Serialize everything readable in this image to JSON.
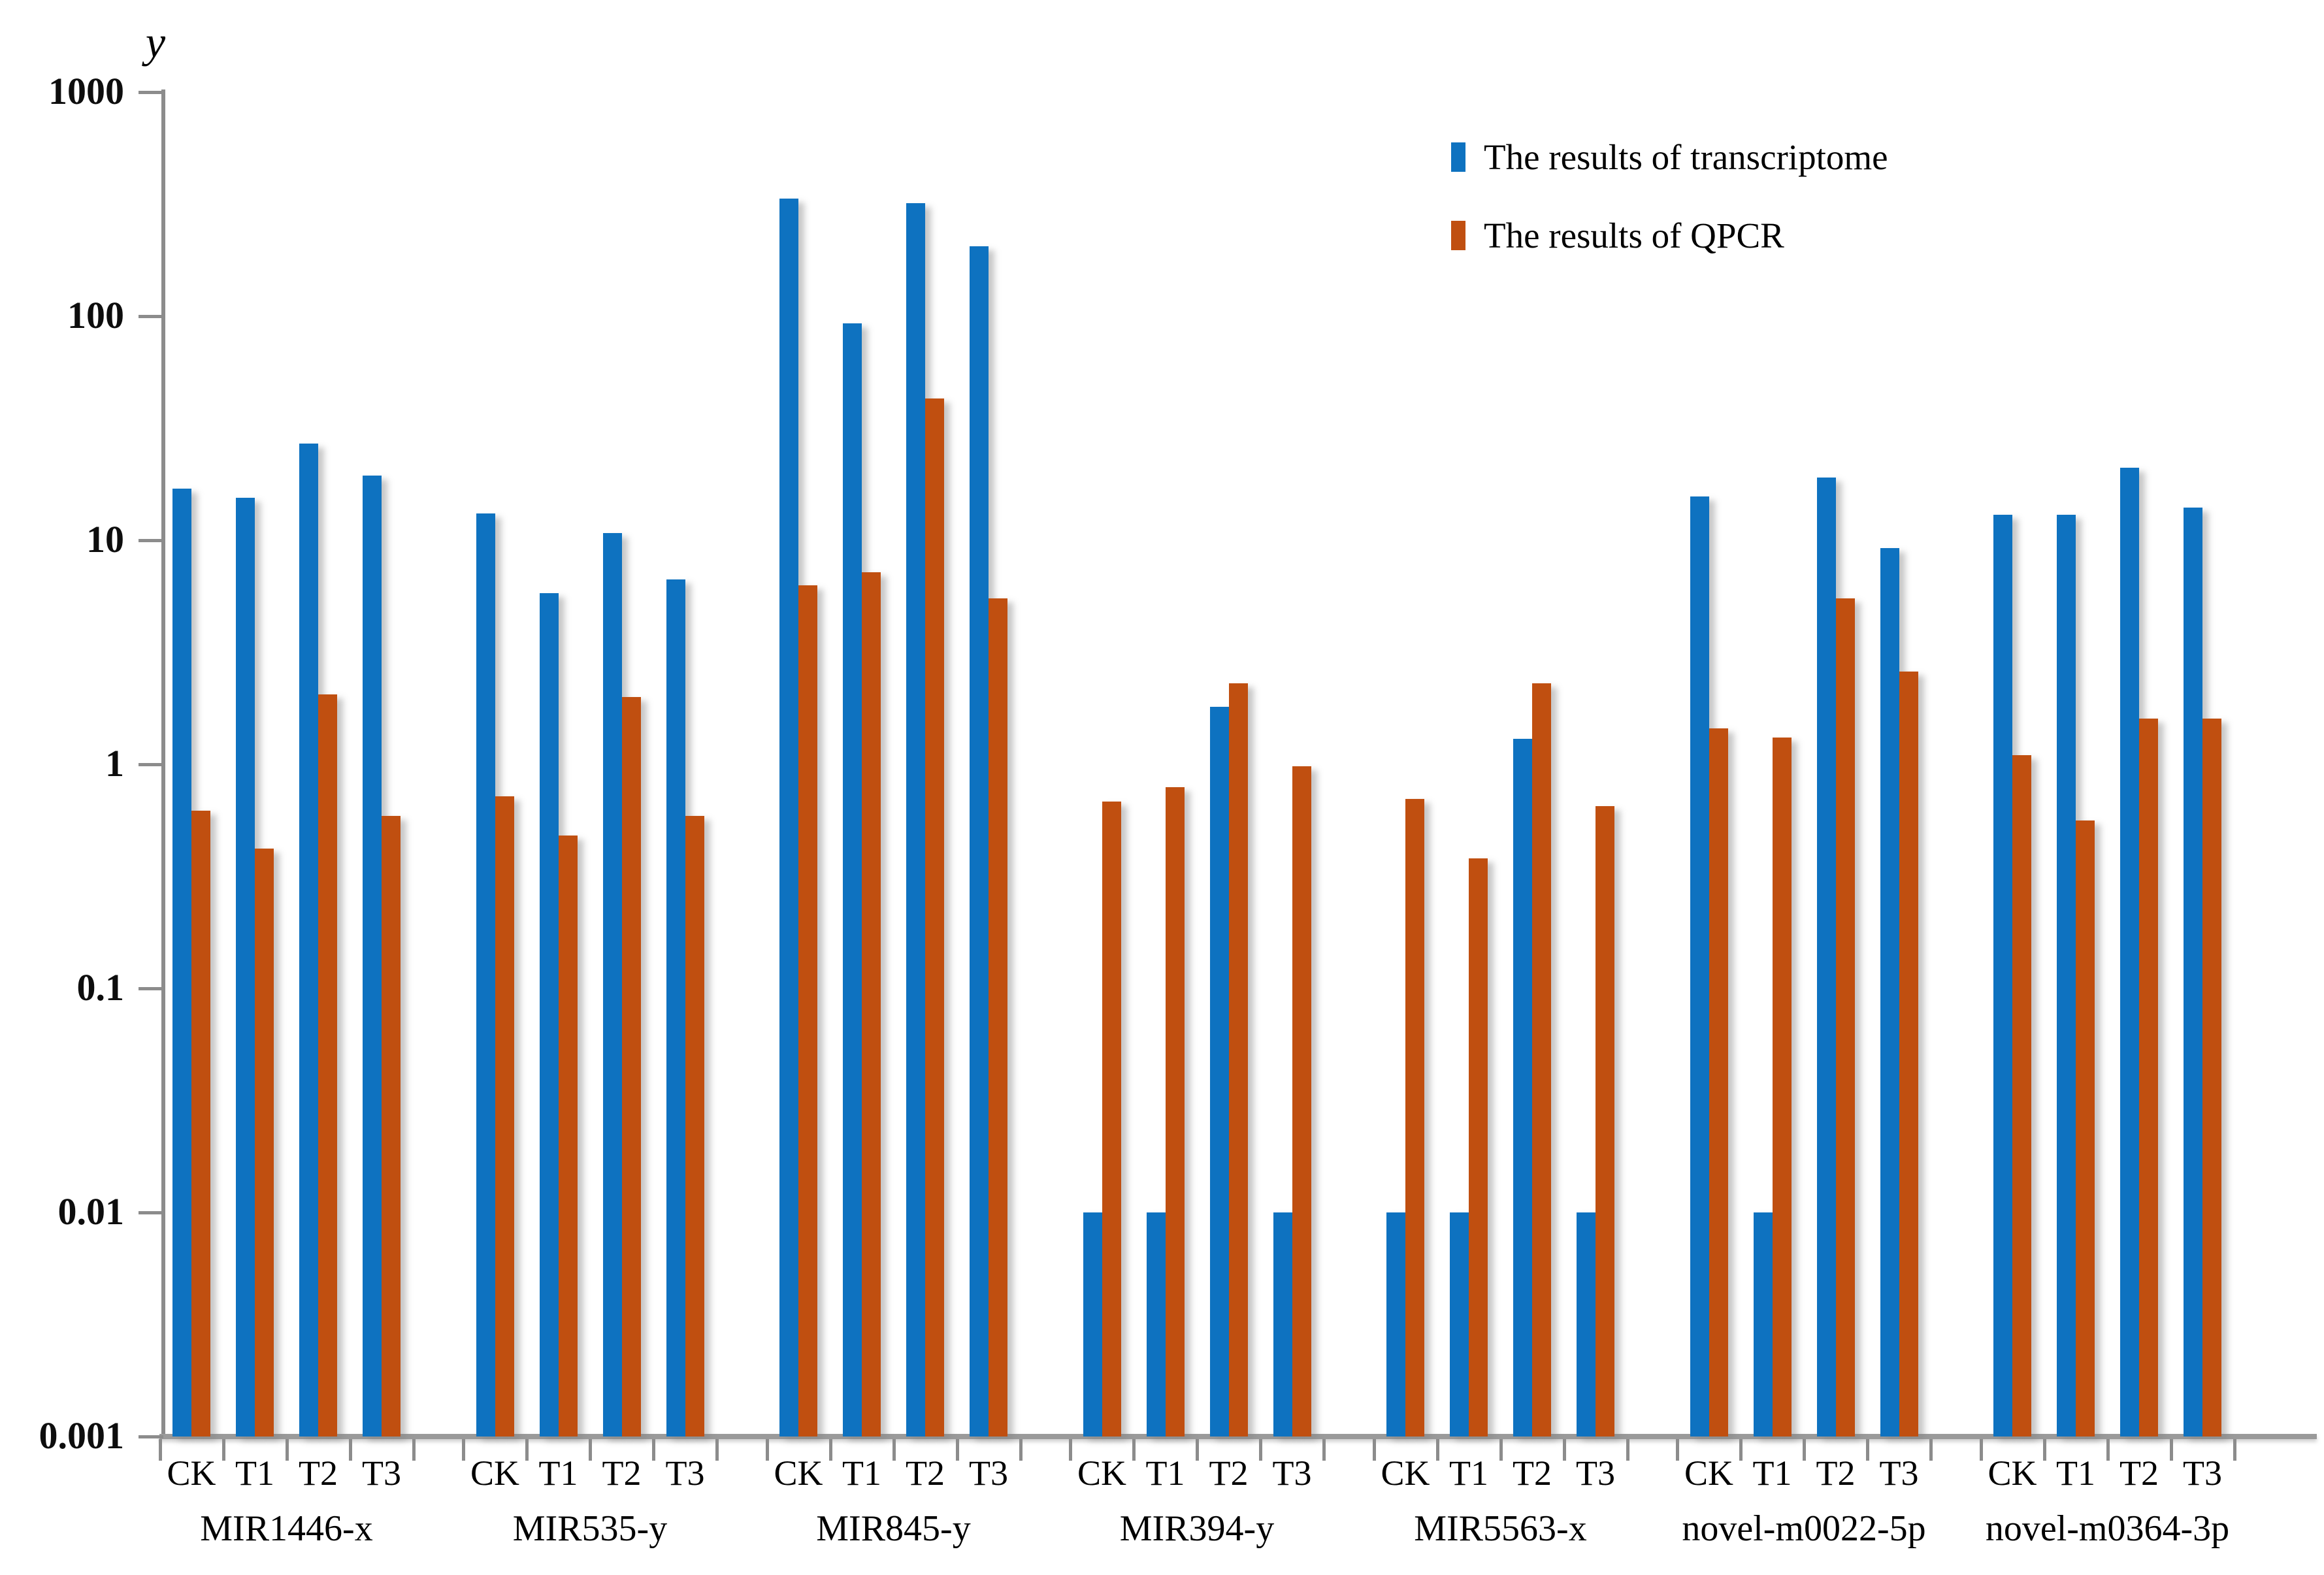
{
  "chart_data": {
    "type": "bar",
    "y_axis_title": "y",
    "scale": "log",
    "ylim": [
      0.001,
      1000
    ],
    "y_ticks": [
      "1000",
      "100",
      "10",
      "1",
      "0.1",
      "0.01",
      "0.001"
    ],
    "categories": [
      "CK",
      "T1",
      "T2",
      "T3"
    ],
    "grid": false,
    "legend_position": "top-right",
    "axis_color": "#8C8C8C",
    "series": [
      {
        "name": "The results of transcriptome",
        "key": "transcriptome",
        "color": "#0E72C0"
      },
      {
        "name": "The results of QPCR",
        "key": "qpcr",
        "color": "#C04F10"
      }
    ],
    "groups": [
      {
        "name": "MIR1446-x",
        "transcriptome": [
          17,
          15.5,
          27,
          19.5
        ],
        "qpcr": [
          0.62,
          0.42,
          2.05,
          0.59
        ]
      },
      {
        "name": "MIR535-y",
        "transcriptome": [
          13.2,
          5.8,
          10.8,
          6.7
        ],
        "qpcr": [
          0.72,
          0.48,
          2.0,
          0.59
        ]
      },
      {
        "name": "MIR845-y",
        "transcriptome": [
          335,
          93,
          320,
          205
        ],
        "qpcr": [
          6.3,
          7.2,
          43,
          5.5
        ]
      },
      {
        "name": "MIR394-y",
        "transcriptome": [
          0.01,
          0.01,
          1.8,
          0.01
        ],
        "qpcr": [
          0.68,
          0.79,
          2.3,
          0.98
        ]
      },
      {
        "name": "MIR5563-x",
        "transcriptome": [
          0.01,
          0.01,
          1.3,
          0.01
        ],
        "qpcr": [
          0.7,
          0.38,
          2.3,
          0.65
        ]
      },
      {
        "name": "novel-m0022-5p",
        "transcriptome": [
          15.7,
          0.01,
          19,
          9.2
        ],
        "qpcr": [
          1.45,
          1.32,
          5.5,
          2.6
        ]
      },
      {
        "name": "novel-m0364-3p",
        "transcriptome": [
          13,
          13,
          21,
          14
        ],
        "qpcr": [
          1.1,
          0.56,
          1.6,
          1.6
        ]
      }
    ]
  }
}
